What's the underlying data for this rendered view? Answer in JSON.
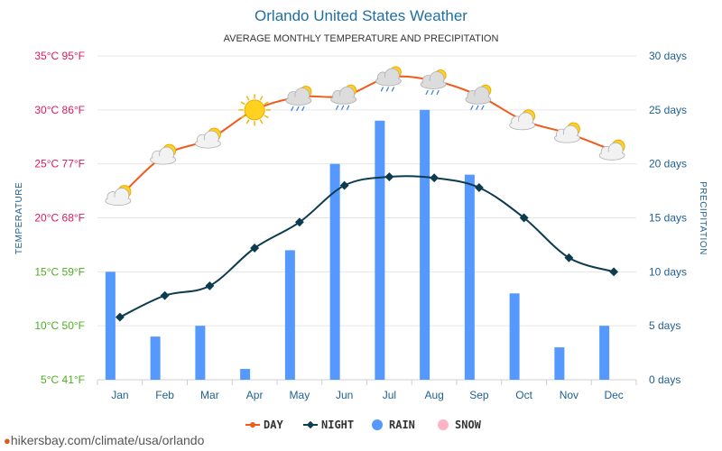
{
  "chart_data": {
    "type": "line+bar",
    "title": "Orlando United States Weather",
    "subtitle": "AVERAGE MONTHLY TEMPERATURE AND PRECIPITATION",
    "left_axis_label": "TEMPERATURE",
    "right_axis_label": "PRECIPITATION",
    "categories": [
      "Jan",
      "Feb",
      "Mar",
      "Apr",
      "May",
      "Jun",
      "Jul",
      "Aug",
      "Sep",
      "Oct",
      "Nov",
      "Dec"
    ],
    "temperature_ylim": [
      5,
      35
    ],
    "temperature_ticks": [
      {
        "label": "35°C 95°F",
        "value": 35,
        "color": "#e0195a"
      },
      {
        "label": "30°C 86°F",
        "value": 30,
        "color": "#e0195a"
      },
      {
        "label": "25°C 77°F",
        "value": 25,
        "color": "#e0195a"
      },
      {
        "label": "20°C 68°F",
        "value": 20,
        "color": "#e0195a"
      },
      {
        "label": "15°C 59°F",
        "value": 15,
        "color": "#4caf1e"
      },
      {
        "label": "10°C 50°F",
        "value": 10,
        "color": "#4caf1e"
      },
      {
        "label": "5°C 41°F",
        "value": 5,
        "color": "#4caf1e"
      }
    ],
    "precipitation_ylim": [
      0,
      30
    ],
    "precipitation_ticks": [
      {
        "label": "30 days",
        "value": 30
      },
      {
        "label": "25 days",
        "value": 25
      },
      {
        "label": "20 days",
        "value": 20
      },
      {
        "label": "15 days",
        "value": 15
      },
      {
        "label": "10 days",
        "value": 10
      },
      {
        "label": "5 days",
        "value": 5
      },
      {
        "label": "0 days",
        "value": 0
      }
    ],
    "series": [
      {
        "name": "DAY",
        "kind": "line",
        "axis": "temperature",
        "color": "#f05a1a",
        "values": [
          22,
          25.8,
          27.3,
          30,
          31.2,
          31.3,
          33,
          32.7,
          31.3,
          29,
          27.8,
          26.2
        ]
      },
      {
        "name": "NIGHT",
        "kind": "line",
        "axis": "temperature",
        "color": "#0d3b4f",
        "values": [
          10.8,
          12.8,
          13.7,
          17.2,
          19.6,
          23,
          23.8,
          23.7,
          22.8,
          20,
          16.3,
          15
        ]
      },
      {
        "name": "RAIN",
        "kind": "bar",
        "axis": "precipitation",
        "color": "#5599ff",
        "values": [
          10,
          4,
          5,
          1,
          12,
          20,
          24,
          25,
          19,
          8,
          3,
          5
        ]
      },
      {
        "name": "SNOW",
        "kind": "bar",
        "axis": "precipitation",
        "color": "#ffb3c6",
        "values": [
          0,
          0,
          0,
          0,
          0,
          0,
          0,
          0,
          0,
          0,
          0,
          0
        ]
      }
    ],
    "weather_icons": [
      "partly-cloudy-icon",
      "partly-cloudy-icon",
      "partly-cloudy-icon",
      "sun-icon",
      "cloudy-rain-icon",
      "cloudy-rain-icon",
      "cloudy-rain-icon",
      "cloudy-rain-icon",
      "cloudy-rain-icon",
      "partly-cloudy-icon",
      "partly-cloudy-icon",
      "partly-cloudy-icon"
    ],
    "grid": true,
    "legend_position": "bottom"
  },
  "footer": {
    "url": "hikersbay.com/climate/usa/orlando"
  }
}
